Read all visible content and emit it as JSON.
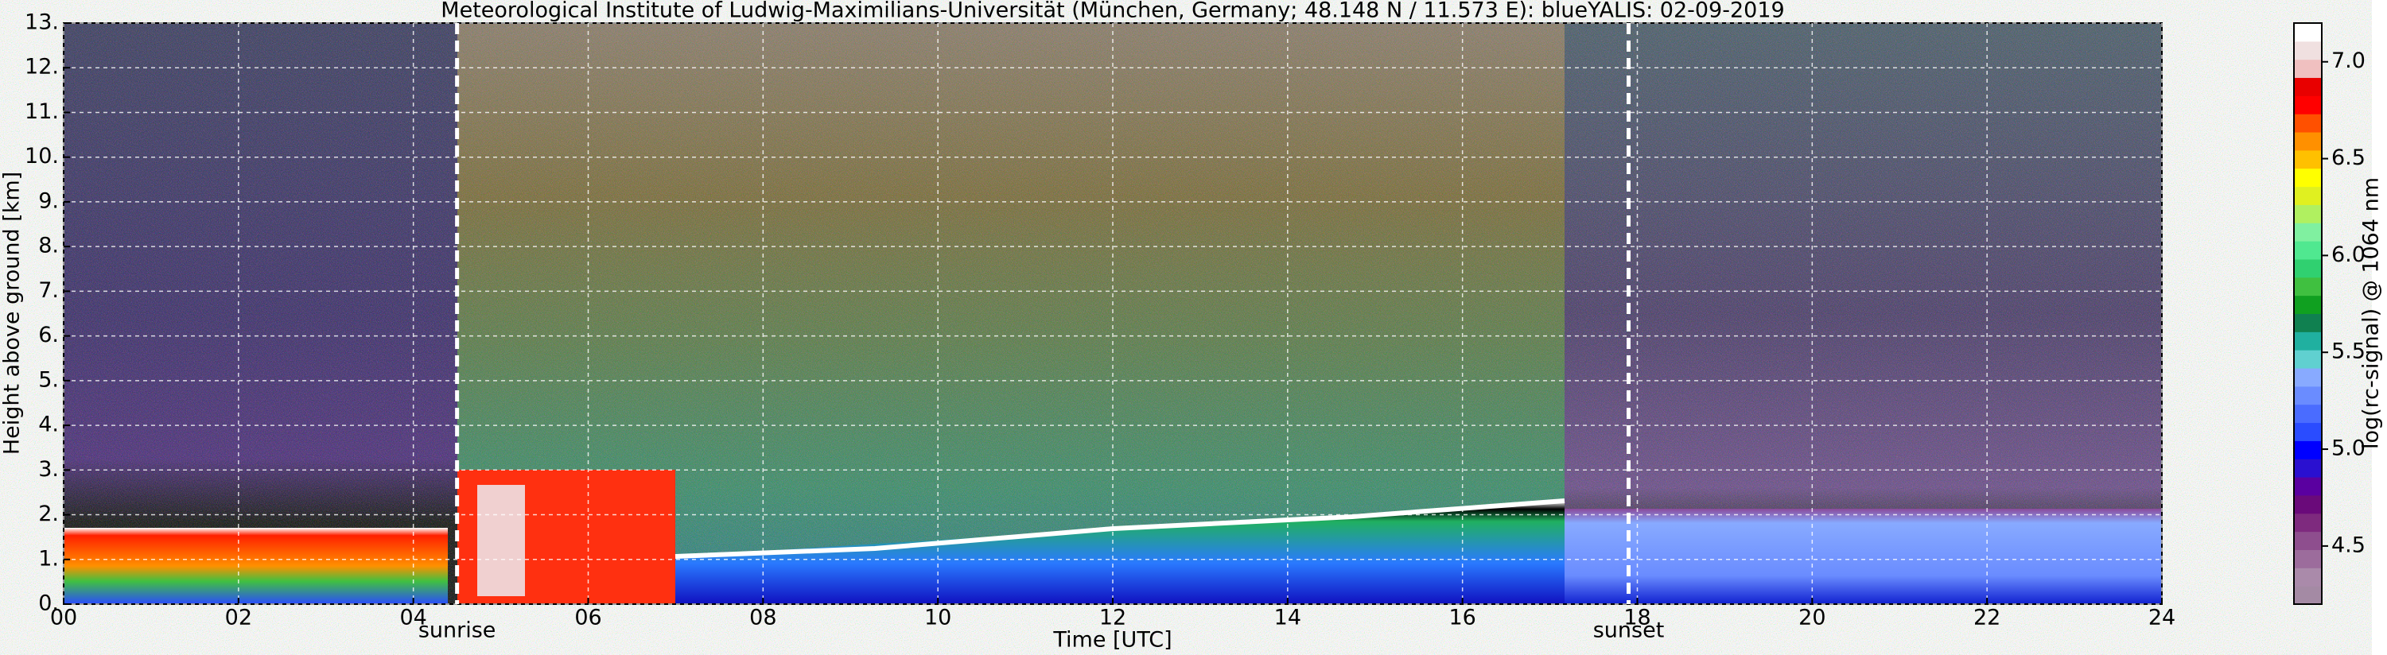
{
  "chart_data": {
    "type": "heatmap",
    "title": "Meteorological Institute of Ludwig-Maximilians-Universität (München, Germany; 48.148 N / 11.573 E):    blueYALIS: 02-09-2019",
    "xlabel": "Time [UTC]",
    "ylabel": "Height above ground [km]",
    "xlim": [
      0,
      24
    ],
    "xticks": [
      {
        "value": 0,
        "label": "00"
      },
      {
        "value": 2,
        "label": "02"
      },
      {
        "value": 4,
        "label": "04"
      },
      {
        "value": 6,
        "label": "06"
      },
      {
        "value": 8,
        "label": "08"
      },
      10,
      12,
      14,
      16,
      18,
      20,
      22,
      24
    ],
    "ylim": [
      0,
      13
    ],
    "yticks": [
      {
        "value": 0,
        "label": "0."
      },
      {
        "value": 1,
        "label": "1."
      },
      {
        "value": 2,
        "label": "2."
      },
      {
        "value": 3,
        "label": "3."
      },
      {
        "value": 4,
        "label": "4."
      },
      {
        "value": 5,
        "label": "5."
      },
      {
        "value": 6,
        "label": "6."
      },
      {
        "value": 7,
        "label": "7."
      },
      {
        "value": 8,
        "label": "8."
      },
      {
        "value": 9,
        "label": "9."
      },
      {
        "value": 10,
        "label": "10."
      },
      {
        "value": 11,
        "label": "11."
      },
      {
        "value": 12,
        "label": "12."
      },
      {
        "value": 13,
        "label": "13."
      }
    ],
    "grid": true,
    "annotations": [
      {
        "text": "sunrise",
        "x": 4.5
      },
      {
        "text": "sunset",
        "x": 17.9
      }
    ],
    "colorbar": {
      "label": "log(rc-signal) @ 1064 nm",
      "clim": [
        4.2,
        7.2
      ],
      "ticks": [
        4.5,
        {
          "value": 5.0,
          "label": "5.0"
        },
        5.5,
        {
          "value": 6.0,
          "label": "6.0"
        },
        6.5,
        {
          "value": 7.0,
          "label": "7.0"
        }
      ],
      "colors": [
        "#a48aa4",
        "#aa8aaa",
        "#9c6c9c",
        "#8e4e8e",
        "#7e2a7e",
        "#6a0a7a",
        "#5a00a0",
        "#2a10d0",
        "#0000ff",
        "#2a4cff",
        "#4a6cff",
        "#6a8cff",
        "#88aaff",
        "#60d0d0",
        "#20b0a0",
        "#108050",
        "#10a020",
        "#40c040",
        "#30d070",
        "#50e890",
        "#80f0a0",
        "#b0f060",
        "#e0f020",
        "#ffff00",
        "#ffc000",
        "#ff9000",
        "#ff5000",
        "#ff0000",
        "#e80000",
        "#f0c0c0",
        "#f0e0e0",
        "#ffffff"
      ]
    }
  }
}
